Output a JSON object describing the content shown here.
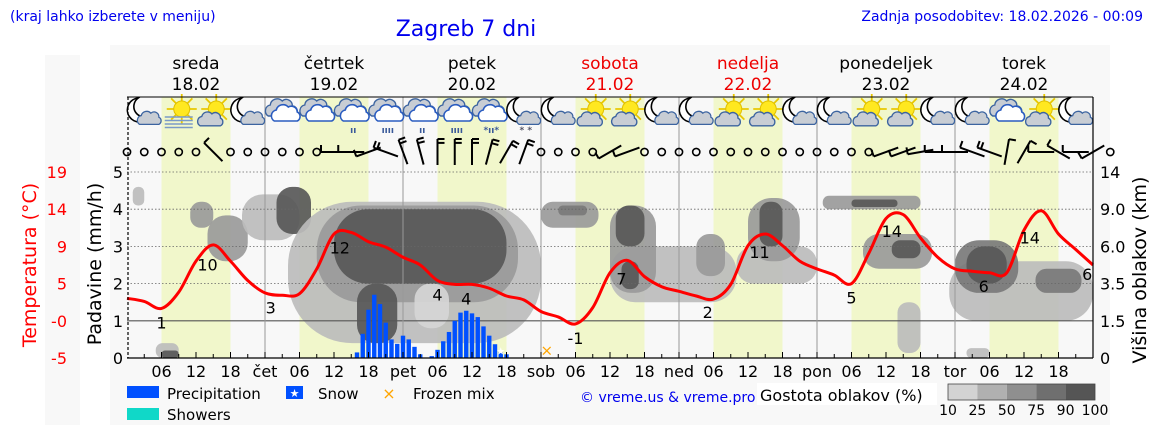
{
  "header": {
    "hint": "(kraj lahko izberete v meniju)",
    "title": "Zagreb 7 dni",
    "updated": "Zadnja posodobitev: 18.02.2026 - 00:09"
  },
  "days": [
    {
      "name": "sreda",
      "date": "18.02",
      "weekend": false
    },
    {
      "name": "četrtek",
      "date": "19.02",
      "weekend": false
    },
    {
      "name": "petek",
      "date": "20.02",
      "weekend": false
    },
    {
      "name": "sobota",
      "date": "21.02",
      "weekend": true
    },
    {
      "name": "nedelja",
      "date": "22.02",
      "weekend": true
    },
    {
      "name": "ponedeljek",
      "date": "23.02",
      "weekend": false
    },
    {
      "name": "torek",
      "date": "24.02",
      "weekend": false
    }
  ],
  "colors": {
    "temperature": "#ff0000",
    "precipitation": "#0050ff",
    "showers": "#10d8c8",
    "frozen_mix": "#ffa500",
    "day_band": "#f1f7cb",
    "night_band": "#f8f8f8",
    "text_blue": "#0000ee"
  },
  "legend": {
    "precipitation": "Precipitation",
    "snow": "Snow",
    "frozen_mix": "Frozen mix",
    "showers": "Showers",
    "copyright": "© vreme.us & vreme.pro",
    "cloud_density_title": "Gostota oblakov (%)",
    "cloud_density_levels": [
      "10",
      "25",
      "50",
      "75",
      "90",
      "100"
    ],
    "cloud_density_colors": [
      "#d3d3d3",
      "#b0b0b0",
      "#8f8f8f",
      "#6f6f6f",
      "#555555"
    ]
  },
  "chart_data": {
    "type": "line",
    "hours_range": [
      0,
      168
    ],
    "x_tick_labels": [
      {
        "h": 6,
        "label": "06"
      },
      {
        "h": 12,
        "label": "12"
      },
      {
        "h": 18,
        "label": "18"
      },
      {
        "h": 24,
        "label": "čet"
      },
      {
        "h": 30,
        "label": "06"
      },
      {
        "h": 36,
        "label": "12"
      },
      {
        "h": 42,
        "label": "18"
      },
      {
        "h": 48,
        "label": "pet"
      },
      {
        "h": 54,
        "label": "06"
      },
      {
        "h": 60,
        "label": "12"
      },
      {
        "h": 66,
        "label": "18"
      },
      {
        "h": 72,
        "label": "sob"
      },
      {
        "h": 78,
        "label": "06"
      },
      {
        "h": 84,
        "label": "12"
      },
      {
        "h": 90,
        "label": "18"
      },
      {
        "h": 96,
        "label": "ned"
      },
      {
        "h": 102,
        "label": "06"
      },
      {
        "h": 108,
        "label": "12"
      },
      {
        "h": 114,
        "label": "18"
      },
      {
        "h": 120,
        "label": "pon"
      },
      {
        "h": 126,
        "label": "06"
      },
      {
        "h": 132,
        "label": "12"
      },
      {
        "h": 138,
        "label": "18"
      },
      {
        "h": 144,
        "label": "tor"
      },
      {
        "h": 150,
        "label": "06"
      },
      {
        "h": 156,
        "label": "12"
      },
      {
        "h": 162,
        "label": "18"
      }
    ],
    "precip_axis": {
      "label": "Padavine (mm/h)",
      "ticks": [
        "0",
        "1",
        "2",
        "3",
        "4",
        "5"
      ],
      "range": [
        0,
        5
      ]
    },
    "temp_axis": {
      "label": "Temperatura (°C)",
      "ticks": [
        "-5",
        "-0",
        "5",
        "9",
        "14",
        "19"
      ],
      "range": [
        -5,
        19
      ]
    },
    "cloud_axis": {
      "label": "Višina oblakov (km)",
      "ticks": [
        "0",
        "1.5",
        "3.5",
        "6.0",
        "9.0",
        "14"
      ],
      "values": [
        0,
        1.5,
        3.5,
        6,
        9,
        14
      ]
    },
    "grid": true,
    "temperature": {
      "name": "Temperatura",
      "hours": [
        0,
        3,
        6,
        9,
        12,
        15,
        18,
        21,
        24,
        27,
        30,
        33,
        36,
        39,
        42,
        45,
        48,
        51,
        54,
        57,
        60,
        63,
        66,
        69,
        72,
        75,
        78,
        81,
        84,
        87,
        90,
        93,
        96,
        99,
        102,
        105,
        108,
        111,
        114,
        117,
        120,
        123,
        126,
        129,
        132,
        135,
        138,
        141,
        144,
        147,
        150,
        153,
        156,
        159,
        162,
        165,
        168
      ],
      "values": [
        2.7,
        2.3,
        1.4,
        3.5,
        7.5,
        9.6,
        7.5,
        5.0,
        3.4,
        3.1,
        3.3,
        6.5,
        11.0,
        11.2,
        10.0,
        9.3,
        8.0,
        7.0,
        5.0,
        4.5,
        4.5,
        4.0,
        3.0,
        2.5,
        1.0,
        0.3,
        -0.6,
        1.5,
        6.0,
        7.6,
        5.5,
        4.2,
        3.6,
        3.0,
        2.6,
        4.5,
        9.5,
        11.0,
        9.5,
        7.5,
        6.5,
        5.7,
        4.6,
        8.5,
        13.0,
        13.5,
        10.5,
        8.0,
        6.5,
        6.2,
        6.0,
        6.0,
        11.5,
        14.0,
        11.0,
        9.0,
        7.0
      ],
      "labels": [
        {
          "h": 6,
          "value": "1"
        },
        {
          "h": 14,
          "value": "10"
        },
        {
          "h": 25,
          "value": "3"
        },
        {
          "h": 37,
          "value": "12"
        },
        {
          "h": 54,
          "value": "4"
        },
        {
          "h": 59,
          "value": "4"
        },
        {
          "h": 78,
          "value": "-1"
        },
        {
          "h": 86,
          "value": "7"
        },
        {
          "h": 101,
          "value": "2"
        },
        {
          "h": 110,
          "value": "11"
        },
        {
          "h": 126,
          "value": "5"
        },
        {
          "h": 133,
          "value": "14"
        },
        {
          "h": 149,
          "value": "6"
        },
        {
          "h": 157,
          "value": "14"
        },
        {
          "h": 167,
          "value": "6"
        }
      ]
    },
    "precipitation": {
      "name": "Precipitation",
      "hours": [
        40,
        41,
        42,
        43,
        44,
        45,
        46,
        47,
        48,
        49,
        50,
        51,
        53,
        54,
        55,
        56,
        57,
        58,
        59,
        60,
        61,
        62,
        63,
        64,
        65,
        66
      ],
      "values": [
        0.15,
        0.65,
        1.3,
        1.7,
        1.45,
        0.95,
        0.5,
        0.38,
        0.6,
        0.5,
        0.3,
        0.1,
        0.05,
        0.22,
        0.45,
        0.7,
        1.0,
        1.22,
        1.27,
        1.2,
        1.1,
        0.85,
        0.6,
        0.37,
        0.15,
        0.1
      ]
    },
    "snow_markers": [
      {
        "h": 65,
        "value": 0.2
      }
    ],
    "frozen_mix_markers": [
      {
        "h": 73,
        "value": 0.2
      }
    ],
    "cloud_density": [
      {
        "h": [
          5,
          9
        ],
        "km": [
          0,
          0.6
        ],
        "density": 25
      },
      {
        "h": [
          6,
          9
        ],
        "km": [
          0,
          0.3
        ],
        "density": 90
      },
      {
        "h": [
          1,
          3
        ],
        "km": [
          9.5,
          12
        ],
        "density": 25
      },
      {
        "h": [
          11,
          15
        ],
        "km": [
          7.5,
          10
        ],
        "density": 50
      },
      {
        "h": [
          14,
          21
        ],
        "km": [
          5,
          8.5
        ],
        "density": 50
      },
      {
        "h": [
          20,
          30
        ],
        "km": [
          6.5,
          11
        ],
        "density": 25
      },
      {
        "h": [
          26,
          32
        ],
        "km": [
          7,
          12
        ],
        "density": 90
      },
      {
        "h": [
          28,
          72
        ],
        "km": [
          0.6,
          10
        ],
        "density": 25
      },
      {
        "h": [
          33,
          68
        ],
        "km": [
          2.5,
          9.5
        ],
        "density": 50
      },
      {
        "h": [
          36,
          66
        ],
        "km": [
          3.5,
          9
        ],
        "density": 90
      },
      {
        "h": [
          40,
          47
        ],
        "km": [
          0.6,
          3.5
        ],
        "density": 90
      },
      {
        "h": [
          50,
          56
        ],
        "km": [
          1.2,
          3.5
        ],
        "density": 10
      },
      {
        "h": [
          72,
          82
        ],
        "km": [
          7.5,
          10
        ],
        "density": 50
      },
      {
        "h": [
          75,
          80
        ],
        "km": [
          8.5,
          9.5
        ],
        "density": 75
      },
      {
        "h": [
          84,
          106
        ],
        "km": [
          2.5,
          6
        ],
        "density": 25
      },
      {
        "h": [
          84,
          92
        ],
        "km": [
          3,
          9.5
        ],
        "density": 50
      },
      {
        "h": [
          85,
          90
        ],
        "km": [
          6,
          9.5
        ],
        "density": 90
      },
      {
        "h": [
          86,
          89
        ],
        "km": [
          3.2,
          5
        ],
        "density": 90
      },
      {
        "h": [
          99,
          104
        ],
        "km": [
          4,
          7
        ],
        "density": 50
      },
      {
        "h": [
          106,
          120
        ],
        "km": [
          3.5,
          6
        ],
        "density": 25
      },
      {
        "h": [
          108,
          117
        ],
        "km": [
          5,
          10.5
        ],
        "density": 50
      },
      {
        "h": [
          110,
          114
        ],
        "km": [
          6,
          10
        ],
        "density": 90
      },
      {
        "h": [
          121,
          138
        ],
        "km": [
          9,
          10.8
        ],
        "density": 50
      },
      {
        "h": [
          126,
          134
        ],
        "km": [
          9.3,
          10.3
        ],
        "density": 90
      },
      {
        "h": [
          128,
          140
        ],
        "km": [
          4.5,
          7
        ],
        "density": 50
      },
      {
        "h": [
          133,
          138
        ],
        "km": [
          5.2,
          6.5
        ],
        "density": 90
      },
      {
        "h": [
          134,
          138
        ],
        "km": [
          0.2,
          2.5
        ],
        "density": 25
      },
      {
        "h": [
          143,
          168
        ],
        "km": [
          1.5,
          5
        ],
        "density": 25
      },
      {
        "h": [
          144,
          155
        ],
        "km": [
          3,
          6.5
        ],
        "density": 75
      },
      {
        "h": [
          146,
          153
        ],
        "km": [
          3.5,
          6
        ],
        "density": 90
      },
      {
        "h": [
          158,
          166
        ],
        "km": [
          3,
          4.5
        ],
        "density": 75
      },
      {
        "h": [
          146,
          150
        ],
        "km": [
          0,
          0.4
        ],
        "density": 25
      }
    ],
    "weather_icons": [
      "moon-cloud",
      "sun-fog",
      "sun-cloud",
      "moon-cloud",
      "cloudy",
      "cloudy",
      "cloud-light-rain",
      "cloud-rain",
      "cloud-light-rain",
      "cloud-rain",
      "cloud-sleet",
      "moon-cloud-snow",
      "moon-cloud",
      "sun-cloud",
      "sun-cloud",
      "moon-cloud",
      "moon-cloud",
      "sun-cloud",
      "sun-cloud",
      "moon-cloud",
      "moon-cloud",
      "sun-cloud",
      "sun-cloud",
      "moon-cloud",
      "moon-cloud",
      "cloudy",
      "sun-cloud",
      "moon-cloud"
    ],
    "wind": [
      null,
      null,
      null,
      null,
      null,
      [
        315,
        5
      ],
      null,
      null,
      null,
      null,
      null,
      null,
      [
        270,
        5
      ],
      [
        270,
        5
      ],
      [
        250,
        5
      ],
      [
        290,
        10
      ],
      [
        340,
        10
      ],
      [
        345,
        10
      ],
      [
        0,
        10
      ],
      [
        0,
        10
      ],
      [
        0,
        10
      ],
      [
        15,
        10
      ],
      [
        30,
        10
      ],
      [
        20,
        10
      ],
      null,
      null,
      null,
      null,
      [
        240,
        5
      ],
      [
        250,
        5
      ],
      null,
      null,
      null,
      null,
      null,
      null,
      null,
      null,
      null,
      null,
      null,
      null,
      null,
      null,
      [
        250,
        5
      ],
      [
        250,
        5
      ],
      [
        260,
        5
      ],
      [
        270,
        5
      ],
      [
        270,
        5
      ],
      [
        290,
        5
      ],
      [
        290,
        10
      ],
      [
        10,
        5
      ],
      [
        30,
        5
      ],
      [
        270,
        5
      ],
      [
        300,
        5
      ],
      [
        270,
        5
      ],
      [
        240,
        5
      ],
      null
    ]
  }
}
